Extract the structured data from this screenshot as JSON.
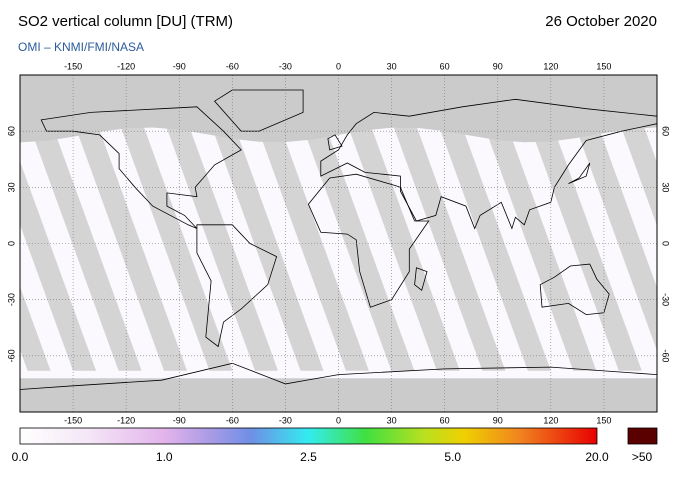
{
  "header": {
    "title": "SO2 vertical column [DU] (TRM)",
    "source": "OMI  –  KNMI/FMI/NASA",
    "date": "26 October 2020"
  },
  "map": {
    "lon_ticks": [
      -150,
      -120,
      -90,
      -60,
      -30,
      0,
      30,
      60,
      90,
      120,
      150
    ],
    "lat_ticks": [
      60,
      30,
      0,
      -30,
      -60
    ]
  },
  "colorbar": {
    "labels": [
      "0.0",
      "1.0",
      "2.5",
      "5.0",
      "20.0"
    ],
    "overflow": ">50"
  }
}
